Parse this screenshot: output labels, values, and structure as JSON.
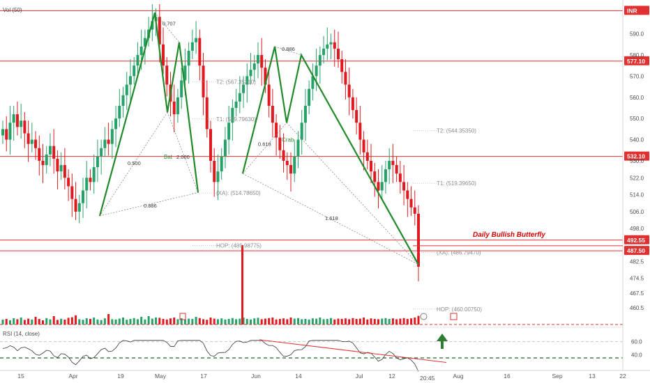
{
  "chart_data": {
    "type": "candlestick",
    "indicator_labels": {
      "volume": "Vol (50)",
      "rsi": "RSI (14, close)"
    },
    "currency_badge": "INR",
    "time_readout": "20:45",
    "price_axis": {
      "min": 454,
      "max": 604,
      "ticks": [
        590.0,
        580.0,
        570.0,
        560.0,
        550.0,
        540.0,
        530.0,
        522.0,
        514.0,
        506.0,
        498.0,
        482.5,
        474.5,
        467.5,
        460.5
      ]
    },
    "x_axis": {
      "labels": [
        "15",
        "Apr",
        "19",
        "May",
        "17",
        "Jun",
        "14",
        "Jul",
        "12",
        "Aug",
        "16",
        "Sep",
        "13",
        "22"
      ]
    },
    "rsi_axis": {
      "min": 20,
      "max": 80,
      "ticks": [
        60.0,
        40.0
      ]
    },
    "horizontal_levels": [
      {
        "price": 600.9,
        "label": "",
        "color": "#e03030"
      },
      {
        "price": 577.1,
        "label": "577.10",
        "color": "#e03030"
      },
      {
        "price": 532.1,
        "label": "532.10",
        "color": "#e03030"
      },
      {
        "price": 492.55,
        "label": "492.55",
        "color": "#e03030"
      },
      {
        "price": 487.5,
        "label": "487.50",
        "color": "#e03030"
      }
    ],
    "annotation": "Daily Bullish Butterfly",
    "patterns": [
      {
        "name": "Bat",
        "ratios": [
          "0.707",
          "0.500",
          "2.000",
          "0.886"
        ]
      },
      {
        "name": "Crab",
        "ratios": [
          "0.886",
          "0.618",
          "1.618"
        ]
      }
    ],
    "target_labels": [
      "T2: (567.35310)",
      "T1: (549.79630)",
      "(XA): (514.78650)",
      "HOP: (489.98775)",
      "T2: (544.35350)",
      "T1: (519.39650)",
      "(XA): (486.79470)",
      "HOP: (460.00750)"
    ],
    "rsi_ranges": {
      "upper": 60,
      "lower": 35
    },
    "candles": {
      "count": 115,
      "open": [
        542,
        545,
        540,
        548,
        552,
        546,
        549,
        543,
        538,
        540,
        536,
        530,
        528,
        533,
        537,
        531,
        525,
        528,
        522,
        518,
        512,
        506,
        510,
        516,
        522,
        520,
        527,
        532,
        536,
        540,
        538,
        545,
        550,
        556,
        561,
        566,
        570,
        575,
        580,
        584,
        588,
        592,
        596,
        598,
        585,
        575,
        566,
        558,
        552,
        560,
        568,
        575,
        582,
        586,
        588,
        575,
        560,
        545,
        530,
        520,
        525,
        532,
        540,
        548,
        555,
        558,
        562,
        566,
        570,
        573,
        576,
        580,
        574,
        566,
        556,
        548,
        541,
        535,
        530,
        528,
        524,
        532,
        540,
        548,
        556,
        564,
        570,
        575,
        580,
        583,
        585,
        586,
        583,
        578,
        572,
        566,
        560,
        554,
        548,
        540,
        534,
        530,
        525,
        520,
        516,
        520,
        526,
        530,
        528,
        524,
        520,
        516,
        512,
        508,
        505
      ],
      "close": [
        545,
        540,
        548,
        552,
        546,
        549,
        543,
        538,
        540,
        536,
        530,
        528,
        533,
        537,
        531,
        525,
        528,
        522,
        518,
        512,
        506,
        510,
        516,
        522,
        520,
        527,
        532,
        536,
        540,
        538,
        545,
        550,
        556,
        561,
        566,
        570,
        575,
        580,
        584,
        588,
        592,
        596,
        598,
        585,
        575,
        566,
        558,
        552,
        560,
        568,
        575,
        582,
        586,
        588,
        575,
        560,
        545,
        530,
        520,
        525,
        532,
        540,
        548,
        555,
        558,
        562,
        566,
        570,
        573,
        576,
        580,
        574,
        566,
        556,
        548,
        541,
        535,
        530,
        528,
        524,
        532,
        540,
        548,
        556,
        564,
        570,
        575,
        580,
        583,
        585,
        586,
        583,
        578,
        572,
        566,
        560,
        554,
        548,
        540,
        534,
        530,
        525,
        520,
        516,
        520,
        526,
        530,
        528,
        524,
        520,
        516,
        512,
        508,
        505,
        480
      ],
      "volume": [
        0.35,
        0.4,
        0.3,
        0.45,
        0.38,
        0.5,
        0.33,
        0.42,
        0.36,
        0.55,
        0.4,
        0.3,
        0.46,
        0.37,
        0.6,
        0.33,
        0.41,
        0.35,
        0.48,
        0.52,
        0.66,
        0.38,
        0.34,
        0.45,
        0.4,
        0.5,
        0.36,
        0.32,
        0.44,
        0.75,
        0.38,
        0.36,
        0.42,
        0.5,
        0.34,
        0.4,
        0.46,
        0.38,
        0.55,
        0.36,
        0.6,
        0.42,
        0.5,
        0.48,
        0.4,
        0.36,
        0.44,
        0.5,
        0.38,
        0.45,
        0.36,
        0.42,
        0.4,
        0.55,
        0.46,
        0.38,
        0.34,
        0.5,
        0.42,
        0.38,
        0.44,
        0.36,
        0.4,
        0.46,
        0.38,
        0.42,
        0.5,
        0.4,
        0.36,
        0.44,
        0.48,
        0.38,
        0.42,
        0.46,
        0.5,
        0.36,
        0.4,
        0.44,
        0.38,
        0.5,
        0.42,
        0.46,
        0.38,
        0.4,
        0.36,
        0.44,
        0.42,
        0.5,
        0.38,
        0.4,
        0.46,
        0.36,
        0.42,
        0.4,
        0.44,
        0.38,
        0.46,
        0.4,
        0.42,
        0.5,
        0.36,
        0.44,
        0.4,
        0.38,
        0.42,
        0.46,
        0.4,
        0.44,
        0.38,
        0.42,
        0.46,
        0.4,
        0.44,
        0.5,
        0.62
      ]
    }
  },
  "colors": {
    "up": "#26a269",
    "down": "#e0191f",
    "pattern": "#1e8a2a",
    "level": "#e03030",
    "arrow": "#2e7d32"
  }
}
